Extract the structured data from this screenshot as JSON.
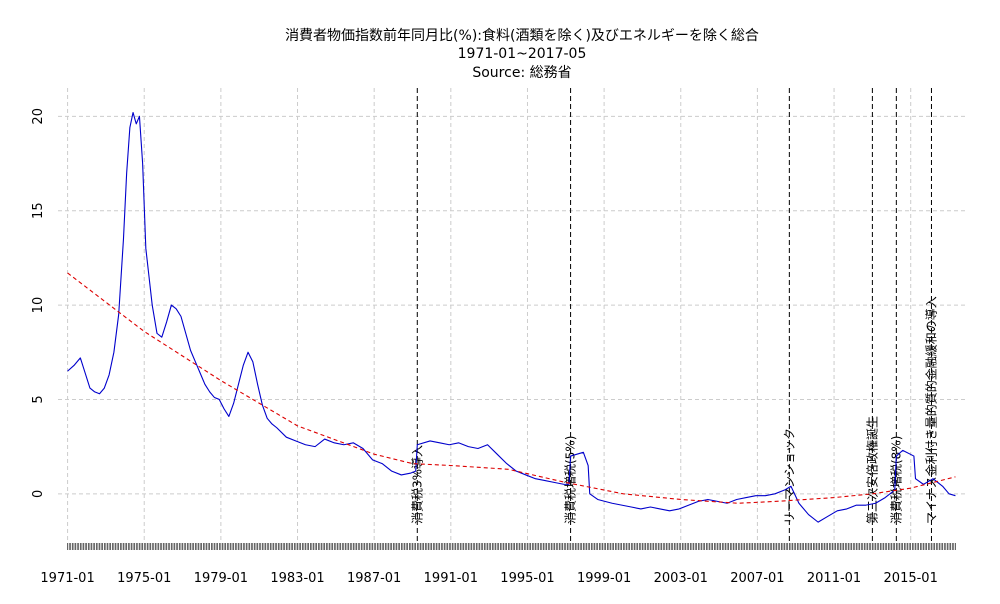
{
  "chart_data": {
    "type": "line",
    "title": "消費者物価指数前年同月比(%):食料(酒類を除く)及びエネルギーを除く総合",
    "subtitle": "1971-01~2017-05",
    "source": "Source: 総務省",
    "xlabel": "",
    "ylabel": "",
    "xlim": [
      "1970-07",
      "2017-11"
    ],
    "ylim": [
      -2.5,
      21.5
    ],
    "x_ticks": [
      "1971-01",
      "1975-01",
      "1979-01",
      "1983-01",
      "1987-01",
      "1991-01",
      "1995-01",
      "1999-01",
      "2003-01",
      "2007-01",
      "2011-01",
      "2015-01"
    ],
    "y_ticks": [
      0,
      5,
      10,
      15,
      20
    ],
    "grid": true,
    "colors": {
      "series": "#0000cc",
      "trend": "#dd0000",
      "events": "#000000",
      "grid": "#cccccc",
      "ticks": "#000000"
    },
    "series": [
      {
        "x": [
          "1971-01",
          "1971-05",
          "1971-09",
          "1971-12",
          "1972-03",
          "1972-06",
          "1972-09",
          "1972-12",
          "1973-03",
          "1973-06",
          "1973-09",
          "1973-12",
          "1974-02",
          "1974-04",
          "1974-06",
          "1974-08",
          "1974-10",
          "1974-12",
          "1975-02",
          "1975-04",
          "1975-06",
          "1975-09",
          "1975-12",
          "1976-03",
          "1976-06",
          "1976-09",
          "1976-12",
          "1977-03",
          "1977-06",
          "1977-09",
          "1977-12",
          "1978-03",
          "1978-06",
          "1978-09",
          "1978-12",
          "1979-03",
          "1979-06",
          "1979-09",
          "1979-12",
          "1980-03",
          "1980-06",
          "1980-09",
          "1980-12",
          "1981-03",
          "1981-06",
          "1981-09",
          "1981-12",
          "1982-06",
          "1982-12",
          "1983-06",
          "1983-12",
          "1984-06",
          "1984-12",
          "1985-06",
          "1985-12",
          "1986-06",
          "1986-12",
          "1987-06",
          "1987-12",
          "1988-06",
          "1988-12",
          "1989-03",
          "1989-04",
          "1989-12",
          "1990-06",
          "1990-12",
          "1991-06",
          "1991-12",
          "1992-06",
          "1992-12",
          "1993-06",
          "1993-12",
          "1994-06",
          "1994-12",
          "1995-06",
          "1995-12",
          "1996-06",
          "1996-12",
          "1997-03",
          "1997-04",
          "1997-12",
          "1998-03",
          "1998-04",
          "1998-09",
          "1999-06",
          "1999-12",
          "2000-06",
          "2000-12",
          "2001-06",
          "2001-12",
          "2002-06",
          "2002-12",
          "2003-06",
          "2003-12",
          "2004-06",
          "2004-12",
          "2005-06",
          "2005-12",
          "2006-06",
          "2006-12",
          "2007-06",
          "2007-12",
          "2008-06",
          "2008-10",
          "2009-03",
          "2009-09",
          "2010-03",
          "2010-09",
          "2011-03",
          "2011-09",
          "2012-03",
          "2012-09",
          "2013-03",
          "2013-09",
          "2014-03",
          "2014-04",
          "2014-08",
          "2015-03",
          "2015-04",
          "2015-09",
          "2016-03",
          "2016-09",
          "2017-01",
          "2017-05"
        ],
        "values": [
          6.5,
          6.8,
          7.2,
          6.4,
          5.6,
          5.4,
          5.3,
          5.6,
          6.3,
          7.5,
          9.5,
          13.5,
          17.0,
          19.4,
          20.2,
          19.6,
          20.0,
          17.5,
          13.0,
          11.5,
          10.0,
          8.5,
          8.3,
          9.1,
          10.0,
          9.8,
          9.4,
          8.5,
          7.6,
          7.0,
          6.4,
          5.8,
          5.4,
          5.1,
          5.0,
          4.5,
          4.1,
          4.8,
          5.8,
          6.8,
          7.5,
          7.0,
          5.8,
          4.7,
          4.0,
          3.7,
          3.5,
          3.0,
          2.8,
          2.6,
          2.5,
          2.9,
          2.7,
          2.6,
          2.7,
          2.4,
          1.8,
          1.6,
          1.2,
          1.0,
          1.1,
          1.2,
          2.6,
          2.8,
          2.7,
          2.6,
          2.7,
          2.5,
          2.4,
          2.6,
          2.1,
          1.6,
          1.2,
          1.0,
          0.8,
          0.7,
          0.6,
          0.5,
          0.5,
          2.0,
          2.2,
          1.5,
          0.0,
          -0.3,
          -0.5,
          -0.6,
          -0.7,
          -0.8,
          -0.7,
          -0.8,
          -0.9,
          -0.8,
          -0.6,
          -0.4,
          -0.3,
          -0.4,
          -0.5,
          -0.3,
          -0.2,
          -0.1,
          -0.1,
          0.0,
          0.2,
          0.4,
          -0.5,
          -1.1,
          -1.5,
          -1.2,
          -0.9,
          -0.8,
          -0.6,
          -0.6,
          -0.5,
          -0.2,
          0.2,
          2.0,
          2.3,
          2.0,
          0.8,
          0.5,
          0.8,
          0.4,
          0.0,
          -0.1
        ]
      },
      {
        "x": [
          "1971-01",
          "1975-01",
          "1979-01",
          "1983-01",
          "1987-01",
          "1989-01",
          "1991-01",
          "1994-01",
          "1997-01",
          "2000-01",
          "2003-01",
          "2006-01",
          "2008-01",
          "2011-01",
          "2013-01",
          "2015-01",
          "2017-05"
        ],
        "values": [
          11.7,
          8.6,
          6.0,
          3.6,
          2.1,
          1.6,
          1.5,
          1.3,
          0.6,
          0.0,
          -0.3,
          -0.5,
          -0.4,
          -0.2,
          0.0,
          0.3,
          0.9
        ]
      }
    ],
    "annotations": [
      {
        "x": "1989-04",
        "label": "消費税3%導入"
      },
      {
        "x": "1997-04",
        "label": "消費税増税(5%)"
      },
      {
        "x": "2008-09",
        "label": "リーマンショック"
      },
      {
        "x": "2013-01",
        "label": "第二次安倍政権誕生"
      },
      {
        "x": "2014-04",
        "label": "消費税増税(8%)"
      },
      {
        "x": "2016-02",
        "label": "マイナス金利付き量的質的金融緩和の導入"
      }
    ]
  }
}
